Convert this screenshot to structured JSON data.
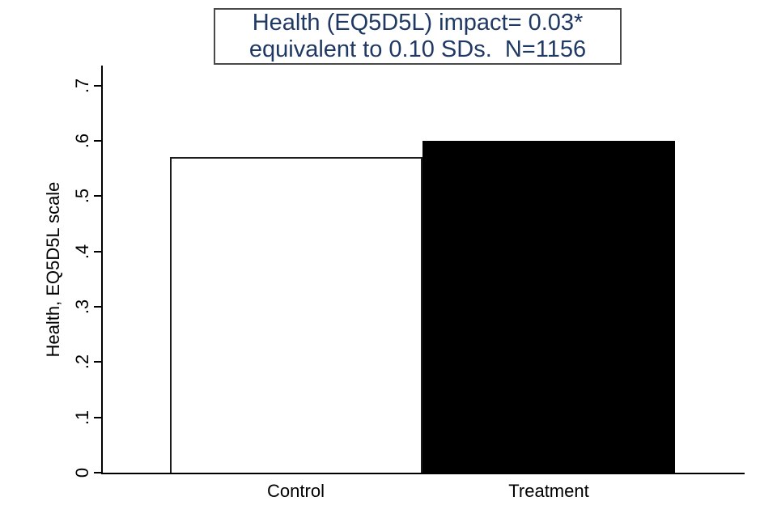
{
  "chart_data": {
    "type": "bar",
    "title_line1": "Health (EQ5D5L) impact= 0.03*",
    "title_line2": "equivalent to 0.10 SDs.  N=1156",
    "categories": [
      "Control",
      "Treatment"
    ],
    "values": [
      0.57,
      0.6
    ],
    "ylabel": "Health, EQ5D5L scale",
    "xlabel": "",
    "ylim": [
      0,
      0.7
    ],
    "ytick_labels": [
      "0",
      ".1",
      ".2",
      ".3",
      ".4",
      ".5",
      ".6",
      ".7"
    ],
    "ytick_values": [
      0,
      0.1,
      0.2,
      0.3,
      0.4,
      0.5,
      0.6,
      0.7
    ],
    "grid": false,
    "legend_position": "none",
    "bar_styles": [
      {
        "fill": "#ffffff",
        "stroke": "#1a1a1a"
      },
      {
        "fill": "#000000",
        "stroke": "#000000"
      }
    ],
    "title_color": "#1f3864",
    "title_box_border_color": "#4a4a4a",
    "axis_color": "#000000"
  }
}
